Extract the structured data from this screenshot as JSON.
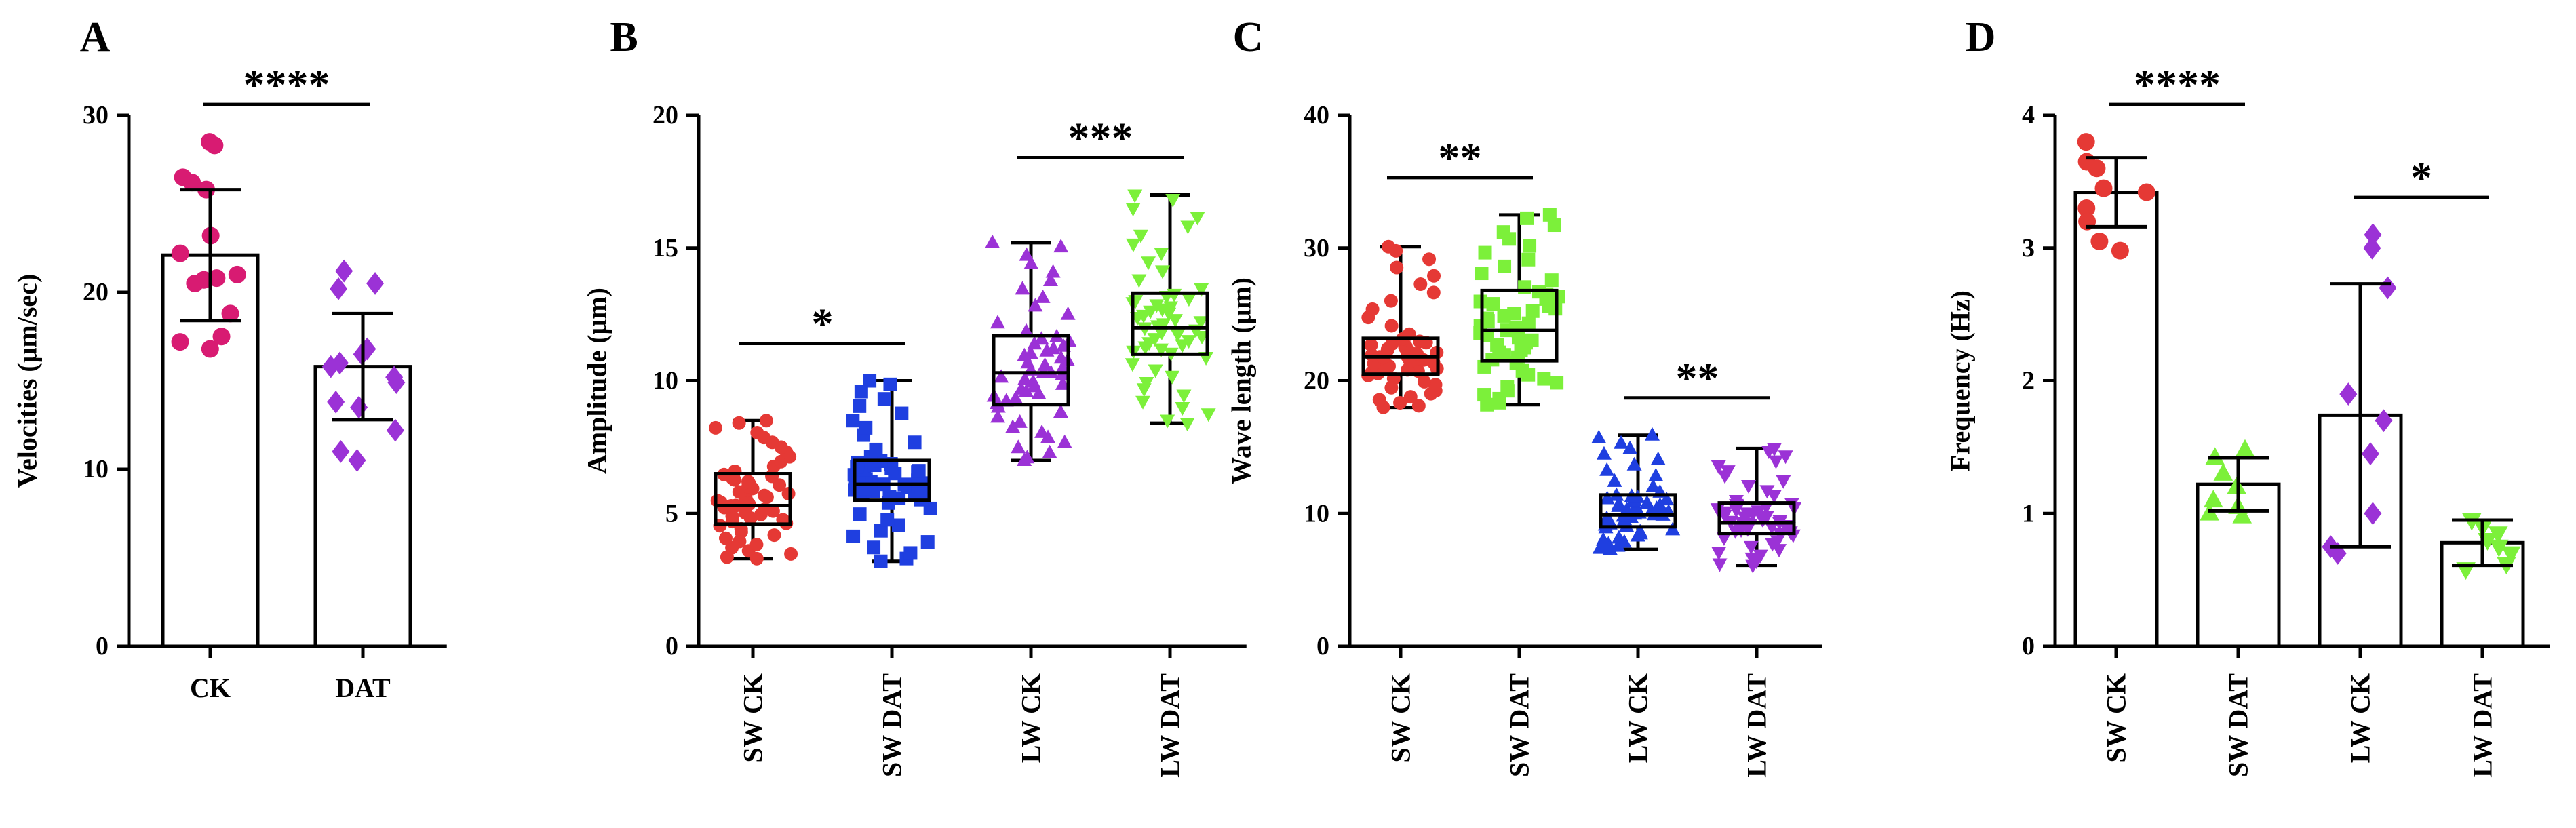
{
  "chart_data": [
    {
      "type": "bar",
      "panel": "A",
      "ylabel": "Velocities (μm/sec)",
      "ylim": [
        0,
        30
      ],
      "yticks": [
        0,
        10,
        20,
        30
      ],
      "categories": [
        "CK",
        "DAT"
      ],
      "series": [
        {
          "name": "CK",
          "color": "#d81b72",
          "marker": "circle",
          "mean": 22.1,
          "sd": 3.7,
          "points": [
            28.5,
            28.3,
            26.5,
            26.2,
            25.8,
            23.2,
            22.2,
            21.0,
            20.8,
            20.7,
            20.5,
            18.8,
            17.5,
            17.2,
            16.8
          ]
        },
        {
          "name": "DAT",
          "color": "#9b32d6",
          "marker": "diamond",
          "mean": 15.8,
          "sd": 3.0,
          "points": [
            21.2,
            20.5,
            20.2,
            16.8,
            16.5,
            16.0,
            15.8,
            15.2,
            14.9,
            13.8,
            13.5,
            12.2,
            11.0,
            10.5
          ]
        }
      ],
      "significance": [
        {
          "from": 0,
          "to": 1,
          "label": "****"
        }
      ]
    },
    {
      "type": "boxplot",
      "panel": "B",
      "ylabel": "Amplitude (μm)",
      "ylim": [
        0,
        20
      ],
      "yticks": [
        0,
        5,
        10,
        15,
        20
      ],
      "categories": [
        "SW CK",
        "SW DAT",
        "LW CK",
        "LW DAT"
      ],
      "series": [
        {
          "name": "SW CK",
          "color": "#e53935",
          "marker": "circle",
          "min": 3.3,
          "q1": 4.6,
          "median": 5.3,
          "q3": 6.5,
          "max": 8.5
        },
        {
          "name": "SW DAT",
          "color": "#1f3fe0",
          "marker": "square",
          "min": 3.2,
          "q1": 5.5,
          "median": 6.1,
          "q3": 7.0,
          "max": 10.0
        },
        {
          "name": "LW CK",
          "color": "#9b32d6",
          "marker": "triangle",
          "min": 7.0,
          "q1": 9.1,
          "median": 10.3,
          "q3": 11.7,
          "max": 15.2
        },
        {
          "name": "LW DAT",
          "color": "#7cf03a",
          "marker": "inverted-triangle",
          "min": 8.4,
          "q1": 11.0,
          "median": 12.0,
          "q3": 13.3,
          "max": 17.0
        }
      ],
      "significance": [
        {
          "from": 0,
          "to": 1,
          "label": "*"
        },
        {
          "from": 2,
          "to": 3,
          "label": "***"
        }
      ]
    },
    {
      "type": "boxplot",
      "panel": "C",
      "ylabel": "Wave length (μm)",
      "ylim": [
        0,
        40
      ],
      "yticks": [
        0,
        10,
        20,
        30,
        40
      ],
      "categories": [
        "SW CK",
        "SW DAT",
        "LW CK",
        "LW DAT"
      ],
      "series": [
        {
          "name": "SW CK",
          "color": "#e53935",
          "marker": "circle",
          "min": 18.0,
          "q1": 20.5,
          "median": 21.8,
          "q3": 23.2,
          "max": 30.1
        },
        {
          "name": "SW DAT",
          "color": "#7cf03a",
          "marker": "square",
          "min": 18.2,
          "q1": 21.5,
          "median": 23.8,
          "q3": 26.8,
          "max": 32.5
        },
        {
          "name": "LW CK",
          "color": "#1f3fe0",
          "marker": "triangle",
          "min": 7.3,
          "q1": 9.0,
          "median": 9.9,
          "q3": 11.4,
          "max": 15.9
        },
        {
          "name": "LW DAT",
          "color": "#9b32d6",
          "marker": "inverted-triangle",
          "min": 6.1,
          "q1": 8.5,
          "median": 9.3,
          "q3": 10.8,
          "max": 14.9
        }
      ],
      "significance": [
        {
          "from": 0,
          "to": 1,
          "label": "**"
        },
        {
          "from": 2,
          "to": 3,
          "label": "**"
        }
      ]
    },
    {
      "type": "bar",
      "panel": "D",
      "ylabel": "Frequency (Hz)",
      "ylim": [
        0,
        4
      ],
      "yticks": [
        0,
        1,
        2,
        3,
        4
      ],
      "categories": [
        "SW CK",
        "SW DAT",
        "LW CK",
        "LW DAT"
      ],
      "series": [
        {
          "name": "SW CK",
          "color": "#e53935",
          "marker": "circle",
          "mean": 3.42,
          "sd": 0.26,
          "points": [
            3.8,
            3.65,
            3.6,
            3.45,
            3.42,
            3.3,
            3.2,
            3.05,
            2.98
          ]
        },
        {
          "name": "SW DAT",
          "color": "#7cf03a",
          "marker": "triangle",
          "mean": 1.22,
          "sd": 0.2,
          "points": [
            1.48,
            1.42,
            1.3,
            1.2,
            1.1,
            1.05,
            1.0,
            0.98
          ]
        },
        {
          "name": "LW CK",
          "color": "#9b32d6",
          "marker": "diamond",
          "mean": 1.74,
          "sd": 0.99,
          "points": [
            3.1,
            3.0,
            2.7,
            1.9,
            1.7,
            1.45,
            1.0,
            0.75,
            0.7
          ]
        },
        {
          "name": "LW DAT",
          "color": "#7cf03a",
          "marker": "inverted-triangle",
          "mean": 0.78,
          "sd": 0.17,
          "points": [
            0.95,
            0.9,
            0.85,
            0.8,
            0.75,
            0.7,
            0.62,
            0.58
          ]
        }
      ],
      "significance": [
        {
          "from": 0,
          "to": 1,
          "label": "****"
        },
        {
          "from": 2,
          "to": 3,
          "label": "*"
        }
      ]
    }
  ]
}
